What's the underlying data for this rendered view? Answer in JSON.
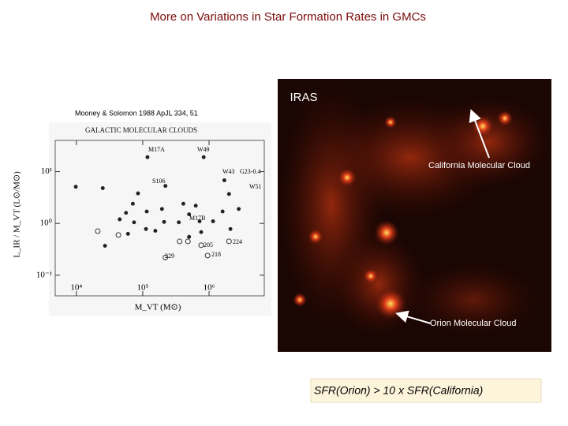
{
  "slide": {
    "title": "More on Variations in Star Formation Rates in GMCs",
    "citation": "Mooney & Solomon 1988 ApJL 334, 51",
    "image_label": "IRAS",
    "california_label": "California Molecular Cloud",
    "orion_label": "Orion Molecular Cloud",
    "conclusion": "SFR(Orion) > 10 x SFR(California)"
  },
  "chart_data": {
    "type": "scatter",
    "title": "GALACTIC MOLECULAR CLOUDS",
    "x_label": "M_VT (M⊙)",
    "y_label": "L_IR / M_VT (L⊙/M⊙)",
    "log_x": true,
    "log_y": true,
    "xlim": [
      4800,
      6800000
    ],
    "ylim": [
      0.04,
      40
    ],
    "xticks": [
      {
        "value": 10000,
        "label": "10⁴"
      },
      {
        "value": 100000,
        "label": "10⁵"
      },
      {
        "value": 1000000,
        "label": "10⁶"
      }
    ],
    "yticks": [
      {
        "value": 0.1,
        "label": "10⁻¹"
      },
      {
        "value": 1,
        "label": "10⁰"
      },
      {
        "value": 10,
        "label": "10¹"
      }
    ],
    "point_labels": [
      "M17A",
      "W49",
      "W43",
      "G23-0.4",
      "W51",
      "S106",
      "M17B",
      "224",
      "205",
      "229",
      "218"
    ],
    "series": [
      {
        "marker": "filled",
        "color": "#222222",
        "x": [
          9800,
          25000,
          118000,
          830000,
          1700000,
          2000000,
          220000,
          85000,
          71000,
          115000,
          56000,
          45000,
          74000,
          210000,
          112000,
          155000,
          60000,
          195000,
          410000,
          630000,
          500000,
          1600000,
          2800000,
          720000,
          1150000,
          760000,
          350000,
          27000,
          2100000,
          500000
        ],
        "values": [
          5.1,
          4.8,
          19,
          19,
          6.8,
          3.7,
          5.3,
          3.8,
          2.4,
          1.7,
          1.6,
          1.2,
          1.05,
          1.07,
          0.78,
          0.72,
          0.63,
          1.9,
          2.4,
          2.2,
          1.5,
          1.7,
          1.9,
          1.1,
          1.1,
          0.68,
          1.05,
          0.37,
          0.78,
          0.55
        ]
      },
      {
        "marker": "open",
        "color": "#222222",
        "x": [
          21000,
          43000,
          360000,
          480000,
          760000,
          2000000,
          220000,
          950000
        ],
        "values": [
          0.71,
          0.6,
          0.45,
          0.45,
          0.38,
          0.45,
          0.22,
          0.24
        ]
      }
    ]
  }
}
